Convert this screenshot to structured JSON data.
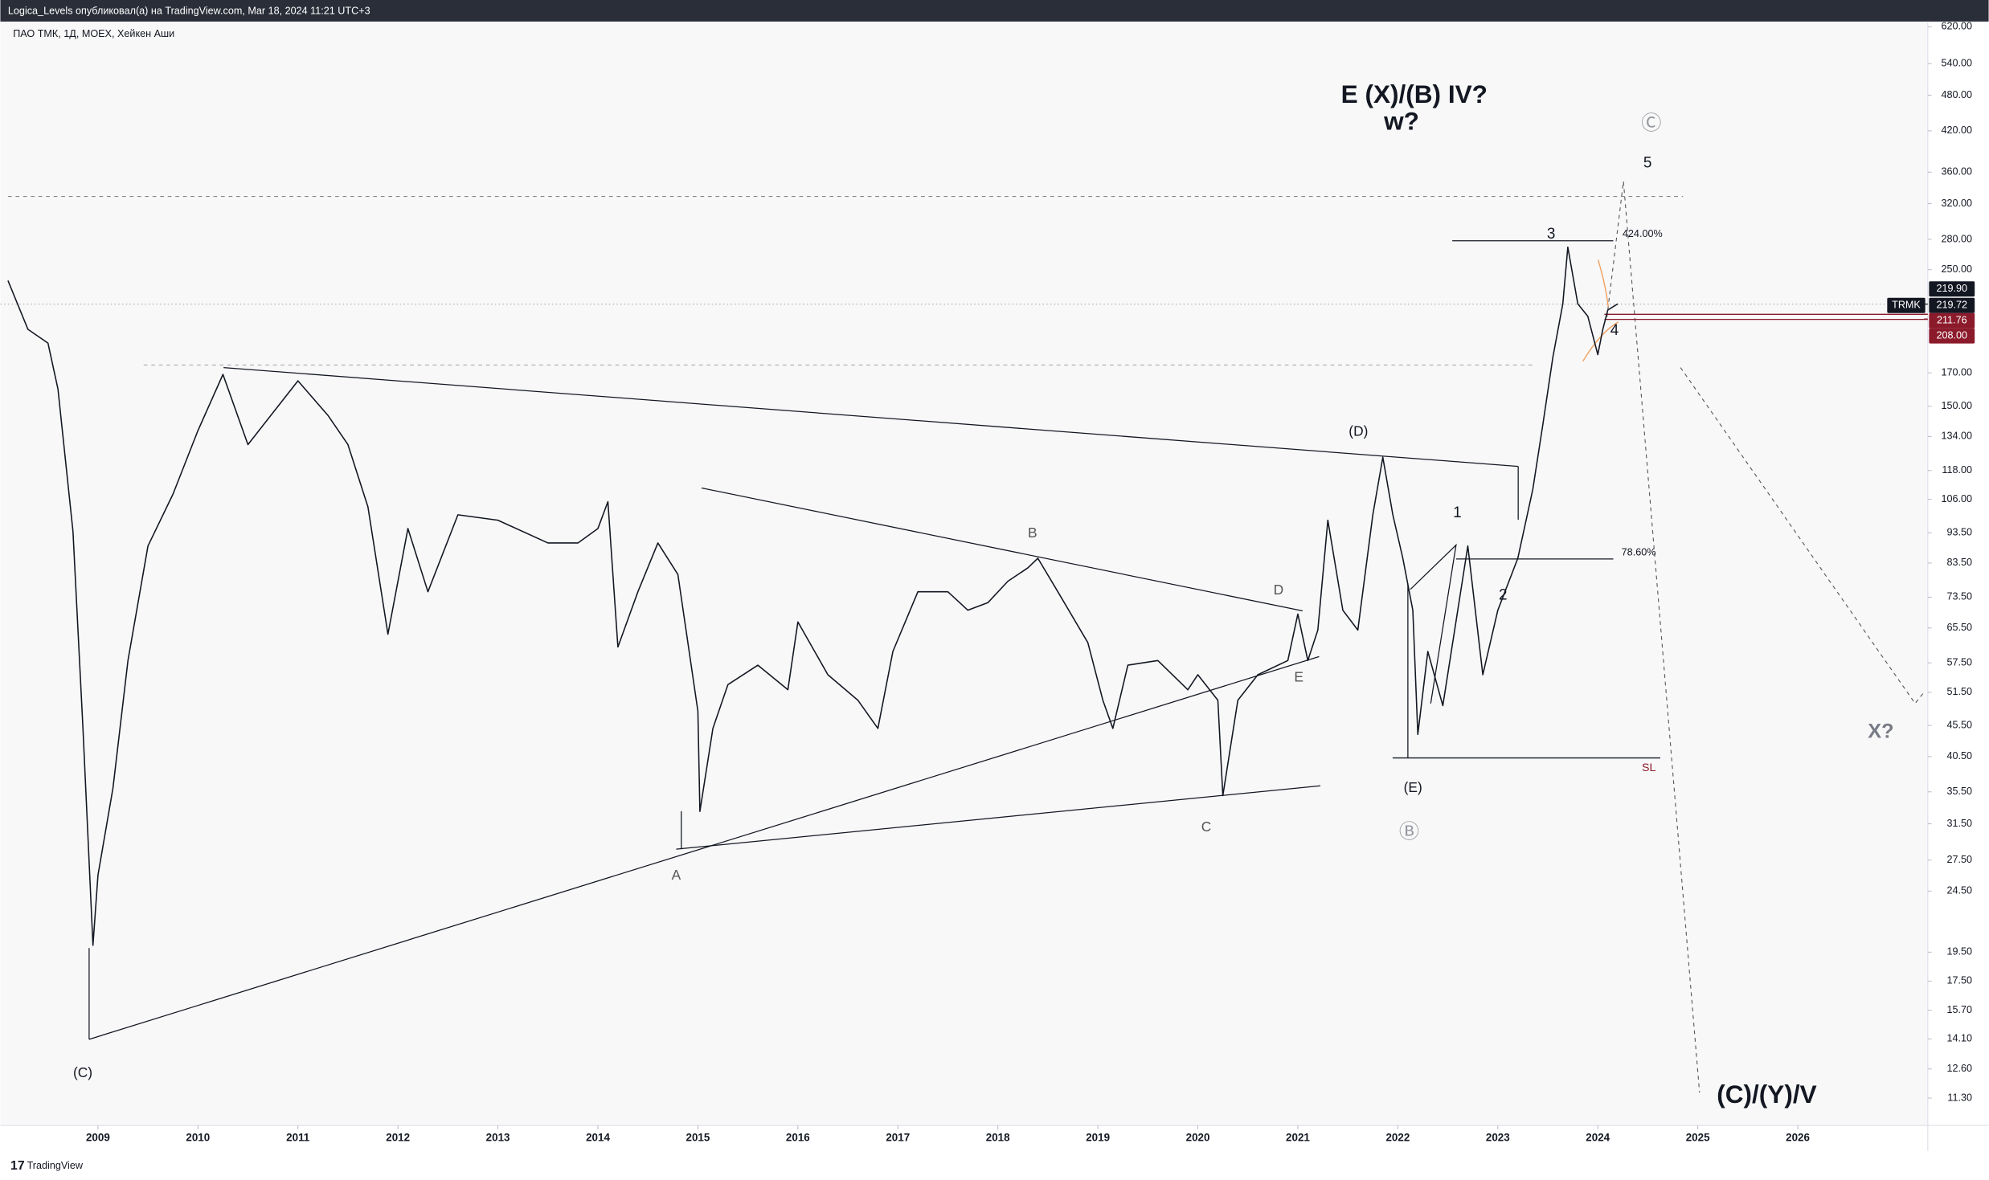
{
  "header": {
    "published": "Logica_Levels опубликовал(а) на TradingView.com, Mar 18, 2024 11:21 UTC+3",
    "instrument": "ПАО ТМК, 1Д, MOEX, Хейкен Аши"
  },
  "footer": {
    "brand": "TradingView"
  },
  "chart_data": {
    "type": "line",
    "log_scale": true,
    "grid": false,
    "xlim": [
      2008.1,
      2027.3
    ],
    "xticks": [
      2009,
      2010,
      2011,
      2012,
      2013,
      2014,
      2015,
      2016,
      2017,
      2018,
      2019,
      2020,
      2021,
      2022,
      2023,
      2024,
      2025,
      2026
    ],
    "ylim": [
      10.2,
      632
    ],
    "yticks": [
      {
        "value": 620,
        "label": "620.00"
      },
      {
        "value": 540,
        "label": "540.00"
      },
      {
        "value": 480,
        "label": "480.00"
      },
      {
        "value": 420,
        "label": "420.00"
      },
      {
        "value": 360,
        "label": "360.00"
      },
      {
        "value": 320,
        "label": "320.00"
      },
      {
        "value": 280,
        "label": "280.00"
      },
      {
        "value": 250,
        "label": "250.00"
      },
      {
        "value": 170,
        "label": "170.00"
      },
      {
        "value": 150,
        "label": "150.00"
      },
      {
        "value": 134,
        "label": "134.00"
      },
      {
        "value": 118,
        "label": "118.00"
      },
      {
        "value": 106,
        "label": "106.00"
      },
      {
        "value": 93.5,
        "label": "93.50"
      },
      {
        "value": 83.5,
        "label": "83.50"
      },
      {
        "value": 73.5,
        "label": "73.50"
      },
      {
        "value": 65.5,
        "label": "65.50"
      },
      {
        "value": 57.5,
        "label": "57.50"
      },
      {
        "value": 51.5,
        "label": "51.50"
      },
      {
        "value": 45.5,
        "label": "45.50"
      },
      {
        "value": 40.5,
        "label": "40.50"
      },
      {
        "value": 35.5,
        "label": "35.50"
      },
      {
        "value": 31.5,
        "label": "31.50"
      },
      {
        "value": 27.5,
        "label": "27.50"
      },
      {
        "value": 24.5,
        "label": "24.50"
      },
      {
        "value": 19.5,
        "label": "19.50"
      },
      {
        "value": 17.5,
        "label": "17.50"
      },
      {
        "value": 15.7,
        "label": "15.70"
      },
      {
        "value": 14.1,
        "label": "14.10"
      },
      {
        "value": 12.6,
        "label": "12.60"
      },
      {
        "value": 11.3,
        "label": "11.30"
      }
    ],
    "series": [
      {
        "color": "#131722",
        "x": [
          2008.1,
          2008.3,
          2008.5,
          2008.6,
          2008.75,
          2008.85,
          2008.95,
          2009.0,
          2009.15,
          2009.3,
          2009.5,
          2009.75,
          2010.0,
          2010.25,
          2010.5,
          2010.8,
          2011.0,
          2011.3,
          2011.5,
          2011.7,
          2011.9,
          2012.1,
          2012.3,
          2012.6,
          2013.0,
          2013.5,
          2013.8,
          2014.0,
          2014.1,
          2014.2,
          2014.4,
          2014.6,
          2014.8,
          2015.0,
          2015.02,
          2015.15,
          2015.3,
          2015.6,
          2015.9,
          2016.0,
          2016.3,
          2016.6,
          2016.8,
          2016.95,
          2017.2,
          2017.5,
          2017.7,
          2017.9,
          2018.1,
          2018.3,
          2018.4,
          2018.6,
          2018.9,
          2019.05,
          2019.15,
          2019.3,
          2019.6,
          2019.9,
          2020.0,
          2020.2,
          2020.25,
          2020.4,
          2020.6,
          2020.9,
          2021.0,
          2021.1,
          2021.2,
          2021.3,
          2021.45,
          2021.6,
          2021.75,
          2021.85,
          2021.95,
          2022.05,
          2022.15,
          2022.2,
          2022.3,
          2022.45,
          2022.7,
          2022.85,
          2023.0,
          2023.2,
          2023.35,
          2023.45,
          2023.55,
          2023.65,
          2023.7,
          2023.8,
          2023.9,
          2024.0,
          2024.05,
          2024.1,
          2024.2
        ],
        "values": [
          240,
          200,
          190,
          160,
          94,
          45,
          20,
          26,
          36,
          58,
          89,
          108,
          137,
          169,
          130,
          150,
          165,
          145,
          130,
          103,
          64,
          95,
          75,
          100,
          98,
          90,
          90,
          95,
          105,
          61,
          75,
          90,
          80,
          48,
          33,
          45,
          53,
          57,
          52,
          67,
          55,
          50,
          45,
          60,
          75,
          75,
          70,
          72,
          78,
          82,
          85,
          75,
          62,
          50,
          45,
          57,
          58,
          52,
          55,
          50,
          35,
          50,
          55,
          58,
          69,
          58,
          65,
          98,
          70,
          65,
          100,
          124,
          100,
          85,
          70,
          44,
          60,
          49,
          89,
          55,
          70,
          85,
          110,
          140,
          180,
          220,
          272,
          220,
          210,
          182,
          200,
          215,
          220
        ]
      }
    ],
    "price_labels": [
      {
        "value": 219.9,
        "label": "219.90"
      },
      {
        "value": 219.72,
        "label": "219.72"
      },
      {
        "value": 211.76,
        "label": "211.76"
      },
      {
        "value": 208,
        "label": "208.00"
      }
    ],
    "symbol": "TRMK",
    "annotations": [
      "E (X)/(B) IV?",
      "w?",
      "Ⓒ",
      "5",
      "3",
      "424.00%",
      "4",
      "78.60%",
      "1",
      "2",
      "(D)",
      "B",
      "D",
      "E",
      "(E)",
      "SL",
      "Ⓑ",
      "C",
      "A",
      "(C)",
      "X?",
      "(C)/(Y)/V"
    ]
  }
}
